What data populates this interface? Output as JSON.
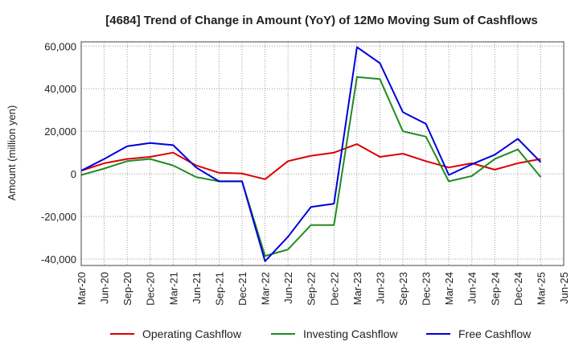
{
  "chart_data": {
    "type": "line",
    "title": "[4684]  Trend of Change in Amount (YoY) of 12Mo Moving Sum of Cashflows",
    "ylabel": "Amount (million yen)",
    "xlabel": "",
    "ylim": [
      -43000,
      62000
    ],
    "yticks": [
      60000,
      40000,
      20000,
      0,
      -20000,
      -40000
    ],
    "ytick_labels": [
      "60,000",
      "40,000",
      "20,000",
      "0",
      "-20,000",
      "-40,000"
    ],
    "categories": [
      "Mar-20",
      "Jun-20",
      "Sep-20",
      "Dec-20",
      "Mar-21",
      "Jun-21",
      "Sep-21",
      "Dec-21",
      "Mar-22",
      "Jun-22",
      "Sep-22",
      "Dec-22",
      "Mar-23",
      "Jun-23",
      "Sep-23",
      "Dec-23",
      "Mar-24",
      "Jun-24",
      "Sep-24",
      "Dec-24",
      "Mar-25",
      "Jun-25"
    ],
    "grid": true,
    "legend_position": "bottom",
    "series": [
      {
        "name": "Operating Cashflow",
        "color": "#dd0000",
        "values": [
          1500,
          5000,
          7000,
          8000,
          10000,
          4000,
          500,
          200,
          -2500,
          6000,
          8500,
          10000,
          14000,
          8000,
          9500,
          6000,
          3000,
          5000,
          2000,
          5000,
          7000,
          null
        ]
      },
      {
        "name": "Investing Cashflow",
        "color": "#228b22",
        "values": [
          -500,
          2500,
          6000,
          7000,
          4000,
          -1500,
          -3500,
          -3500,
          -38500,
          -35500,
          -24000,
          -24000,
          45500,
          44500,
          20000,
          17500,
          -3500,
          -1000,
          7000,
          11500,
          -1500,
          null
        ]
      },
      {
        "name": "Free Cashflow",
        "color": "#0000dd",
        "values": [
          1500,
          7000,
          13000,
          14500,
          13500,
          3000,
          -3500,
          -3500,
          -41000,
          -29500,
          -15500,
          -14000,
          59500,
          52000,
          29000,
          23500,
          -500,
          4500,
          9000,
          16500,
          5500,
          null
        ]
      }
    ]
  }
}
